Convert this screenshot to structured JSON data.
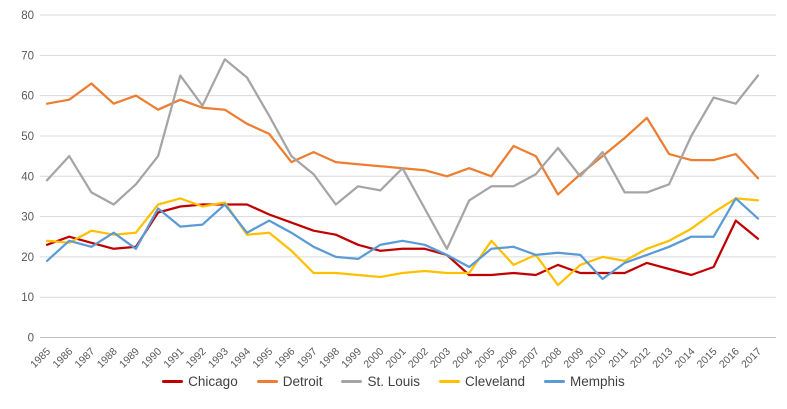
{
  "chart_data": {
    "type": "line",
    "title": "",
    "x": [
      1985,
      1986,
      1987,
      1988,
      1989,
      1990,
      1991,
      1992,
      1993,
      1994,
      1995,
      1996,
      1997,
      1998,
      1999,
      2000,
      2001,
      2002,
      2003,
      2004,
      2005,
      2006,
      2007,
      2008,
      2009,
      2010,
      2011,
      2012,
      2013,
      2014,
      2015,
      2016,
      2017
    ],
    "series": [
      {
        "name": "Chicago",
        "color": "#C00000",
        "values": [
          23,
          25,
          23.5,
          22,
          22.5,
          31,
          32.5,
          33,
          33,
          33,
          30.5,
          28.5,
          26.5,
          25.5,
          23,
          21.5,
          22,
          22,
          20.5,
          15.5,
          15.5,
          16,
          15.5,
          18,
          16,
          16,
          16,
          18.5,
          17,
          15.5,
          17.5,
          29,
          24.5
        ]
      },
      {
        "name": "Detroit",
        "color": "#ED7D31",
        "values": [
          58,
          59,
          63,
          58,
          60,
          56.5,
          59,
          57,
          56.5,
          53,
          50.5,
          43.5,
          46,
          43.5,
          43,
          42.5,
          42,
          41.5,
          40,
          42,
          40,
          47.5,
          45,
          35.5,
          40.5,
          45,
          49.5,
          54.5,
          45.5,
          44,
          44,
          45.5,
          39.5
        ]
      },
      {
        "name": "St. Louis",
        "color": "#A5A5A5",
        "values": [
          39,
          45,
          36,
          33,
          38,
          45,
          65,
          57.5,
          69,
          64.5,
          55,
          45,
          40.5,
          33,
          37.5,
          36.5,
          42,
          32,
          22,
          34,
          37.5,
          37.5,
          40.5,
          47,
          40,
          46,
          36,
          36,
          38,
          50,
          59.5,
          58,
          65
        ]
      },
      {
        "name": "Cleveland",
        "color": "#FFC000",
        "values": [
          24,
          23.5,
          26.5,
          25.5,
          26,
          33,
          34.5,
          32.5,
          33.5,
          25.5,
          26,
          21.5,
          16,
          16,
          15.5,
          15,
          16,
          16.5,
          16,
          16,
          24,
          18,
          20.5,
          13,
          18,
          20,
          19,
          22,
          24,
          27,
          31,
          34.5,
          34
        ]
      },
      {
        "name": "Memphis",
        "color": "#5B9BD5",
        "values": [
          19,
          24,
          22.5,
          26,
          22,
          32,
          27.5,
          28,
          33,
          26,
          29,
          26,
          22.5,
          20,
          19.5,
          23,
          24,
          23,
          20.5,
          17.5,
          22,
          22.5,
          20.5,
          21,
          20.5,
          14.5,
          18.5,
          20.5,
          22.5,
          25,
          25,
          34.5,
          29.5
        ]
      }
    ],
    "y_axis": {
      "min": 0,
      "max": 80,
      "step": 10,
      "tick_labels": [
        "0",
        "10",
        "20",
        "30",
        "40",
        "50",
        "60",
        "70",
        "80"
      ]
    },
    "x_axis": {
      "tick_labels": [
        "1985",
        "1986",
        "1987",
        "1988",
        "1989",
        "1990",
        "1991",
        "1992",
        "1993",
        "1994",
        "1995",
        "1996",
        "1997",
        "1998",
        "1999",
        "2000",
        "2001",
        "2002",
        "2003",
        "2004",
        "2005",
        "2006",
        "2007",
        "2008",
        "2009",
        "2010",
        "2011",
        "2012",
        "2013",
        "2014",
        "2015",
        "2016",
        "2017"
      ]
    },
    "grid": true,
    "legend_position": "bottom",
    "legend_labels": [
      "Chicago",
      "Detroit",
      "St. Louis",
      "Cleveland",
      "Memphis"
    ]
  },
  "colors": {
    "background": "#FFFFFF",
    "gridline": "#D9D9D9",
    "axis_line": "#BFBFBF",
    "axis_text": "#595959",
    "legend_text": "#404040"
  }
}
